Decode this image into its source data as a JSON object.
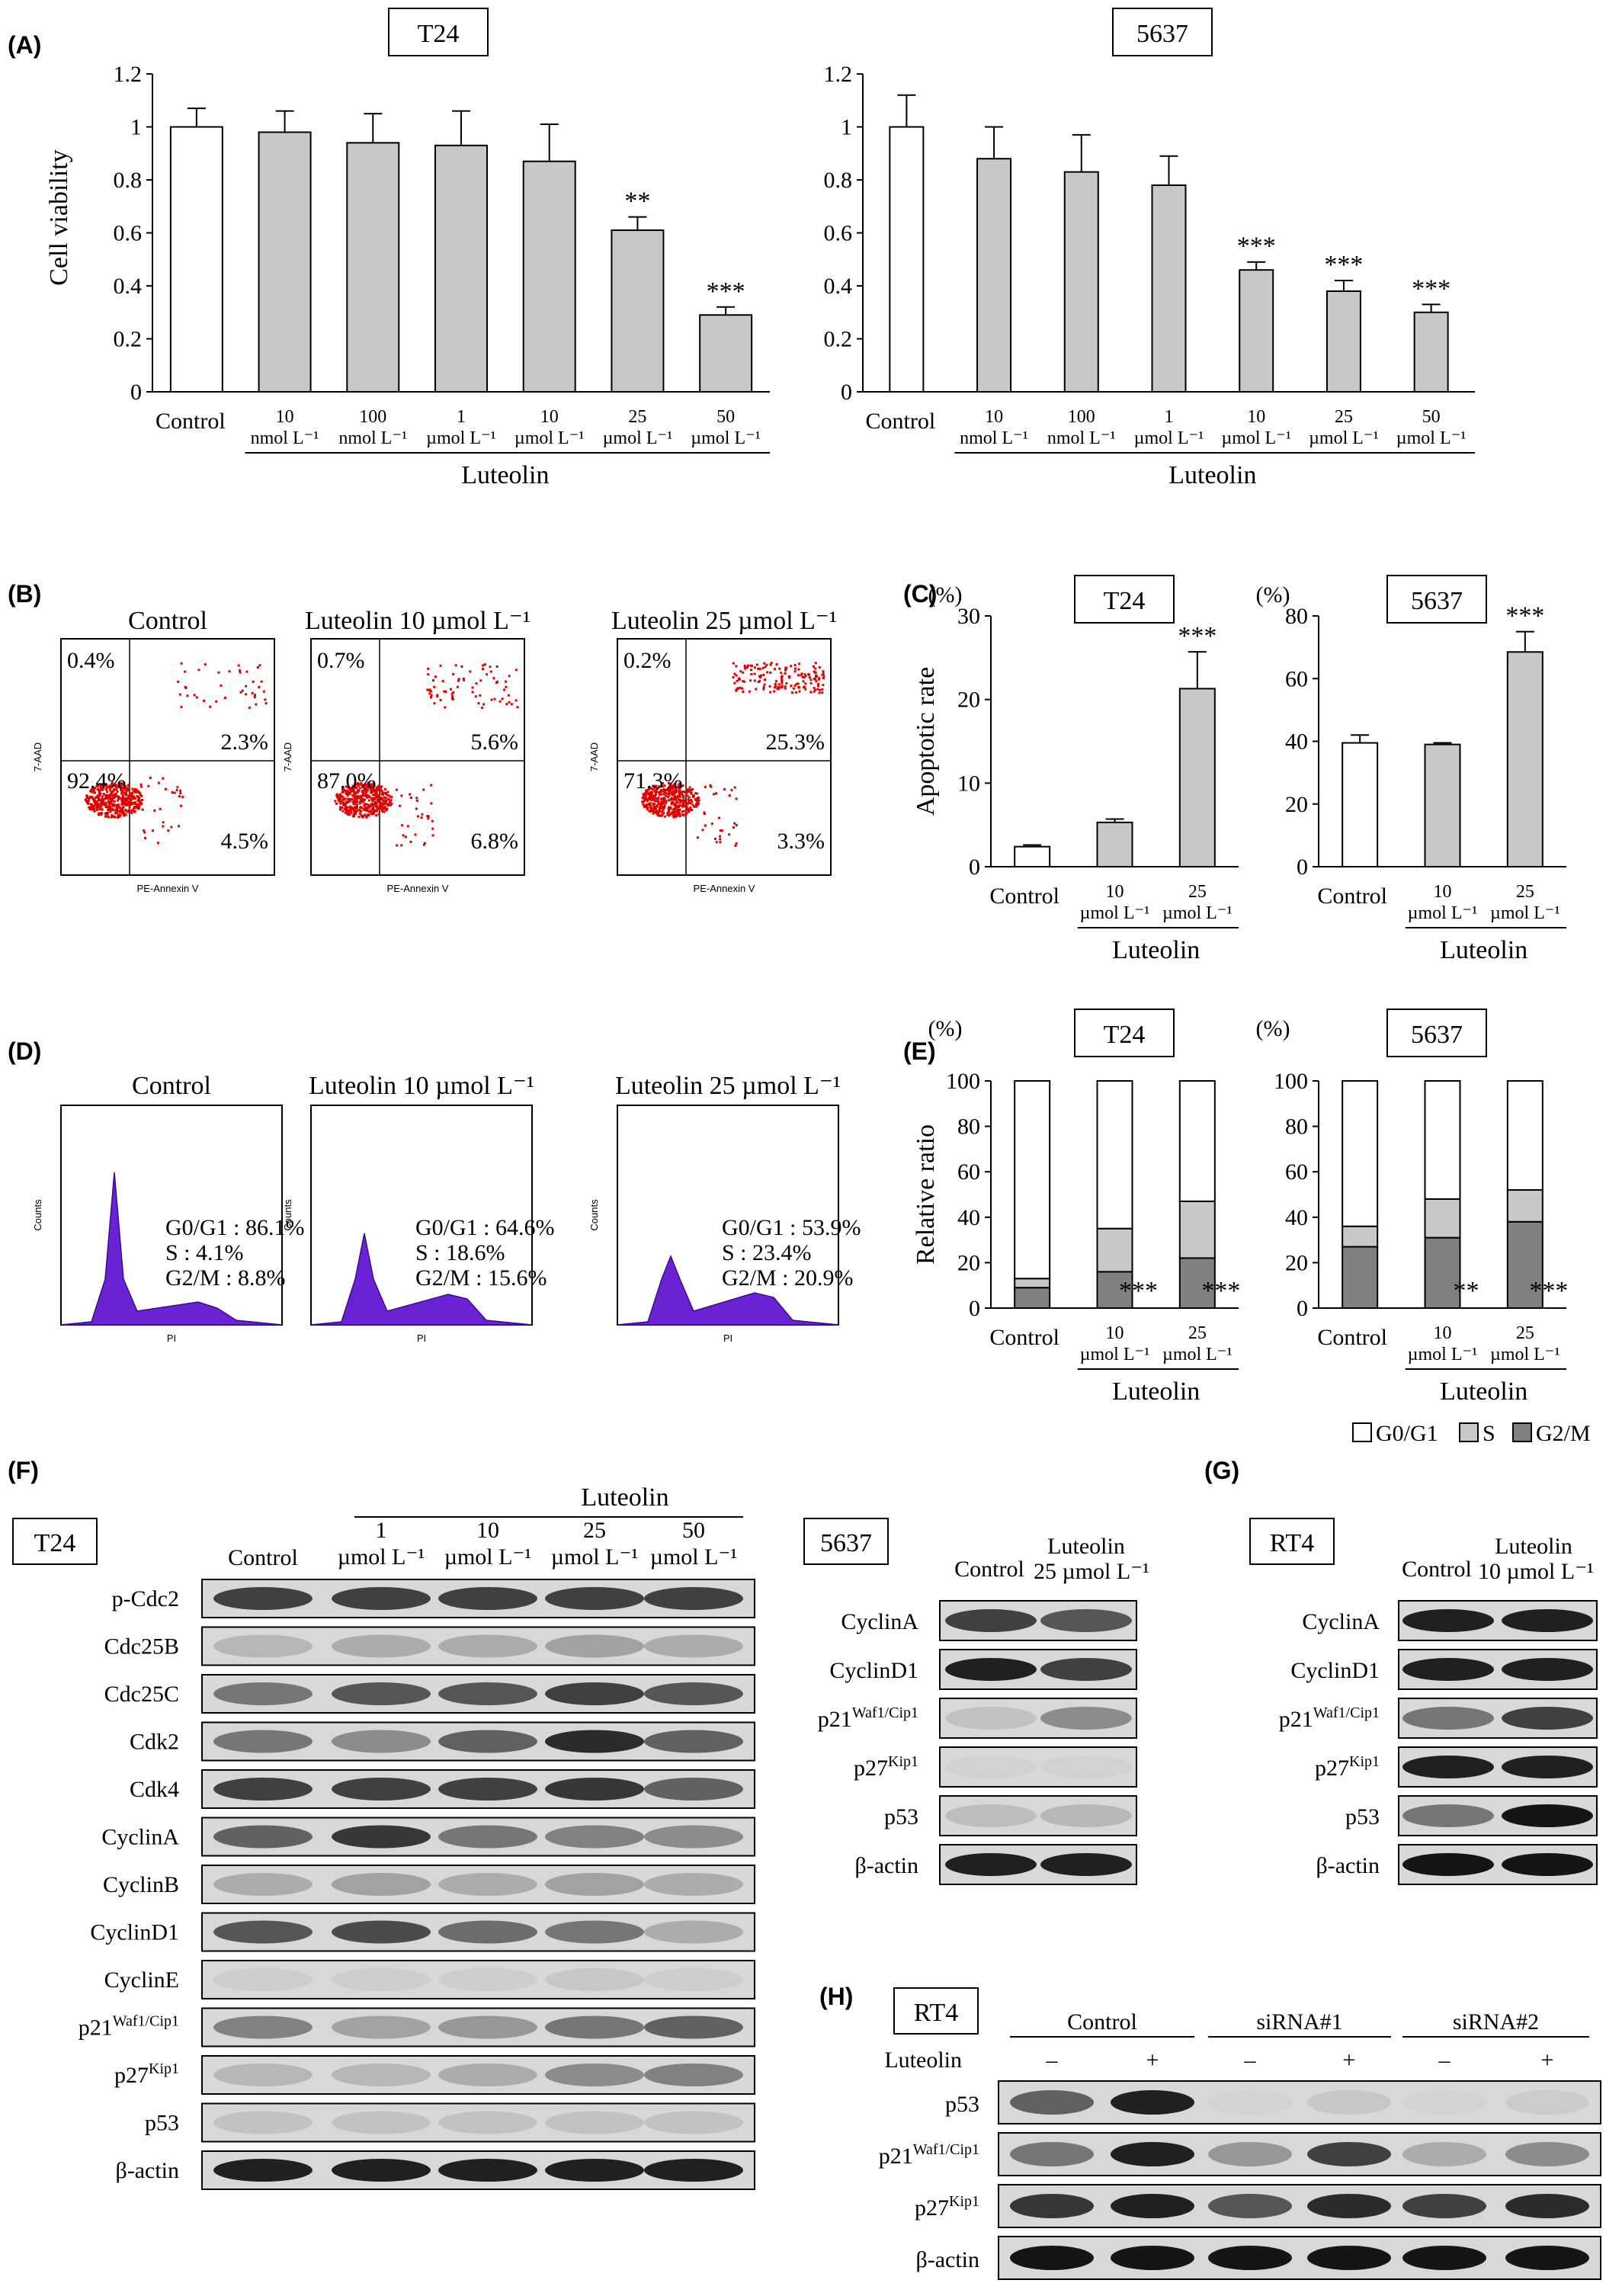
{
  "panels": {
    "A": "(A)",
    "B": "(B)",
    "C": "(C)",
    "D": "(D)",
    "E": "(E)",
    "F": "(F)",
    "G": "(G)",
    "H": "(H)"
  },
  "common": {
    "control": "Control",
    "luteolin": "Luteolin",
    "cell_viability": "Cell viability",
    "apoptotic_rate": "Apoptotic rate",
    "relative_ratio": "Relative ratio",
    "percent_unit": "(%)",
    "dose_labels_A": [
      [
        "10",
        "nmol L⁻¹"
      ],
      [
        "100",
        "nmol L⁻¹"
      ],
      [
        "1",
        "µmol L⁻¹"
      ],
      [
        "10",
        "µmol L⁻¹"
      ],
      [
        "25",
        "µmol L⁻¹"
      ],
      [
        "50",
        "µmol L⁻¹"
      ]
    ],
    "dose_labels_CE": [
      [
        "10",
        "µmol L⁻¹"
      ],
      [
        "25",
        "µmol L⁻¹"
      ]
    ],
    "legend": [
      "G0/G1",
      "S",
      "G2/M"
    ]
  },
  "chart_data": [
    {
      "id": "A-T24",
      "type": "bar",
      "title": "T24",
      "ylabel": "Cell viability",
      "ylim": [
        0,
        1.2
      ],
      "yticks": [
        "0",
        "0.2",
        "0.4",
        "0.6",
        "0.8",
        "1",
        "1.2"
      ],
      "categories": [
        "Control",
        "10 nmol L⁻¹",
        "100 nmol L⁻¹",
        "1 µmol L⁻¹",
        "10 µmol L⁻¹",
        "25 µmol L⁻¹",
        "50 µmol L⁻¹"
      ],
      "values": [
        1.0,
        0.98,
        0.94,
        0.93,
        0.87,
        0.61,
        0.29
      ],
      "errors": [
        0.07,
        0.08,
        0.11,
        0.13,
        0.14,
        0.05,
        0.03
      ],
      "annotations": [
        "",
        "",
        "",
        "",
        "",
        "**",
        "***"
      ]
    },
    {
      "id": "A-5637",
      "type": "bar",
      "title": "5637",
      "ylabel": "",
      "ylim": [
        0,
        1.2
      ],
      "yticks": [
        "0",
        "0.2",
        "0.4",
        "0.6",
        "0.8",
        "1",
        "1.2"
      ],
      "categories": [
        "Control",
        "10 nmol L⁻¹",
        "100 nmol L⁻¹",
        "1 µmol L⁻¹",
        "10 µmol L⁻¹",
        "25 µmol L⁻¹",
        "50 µmol L⁻¹"
      ],
      "values": [
        1.0,
        0.88,
        0.83,
        0.78,
        0.46,
        0.38,
        0.3
      ],
      "errors": [
        0.12,
        0.12,
        0.14,
        0.11,
        0.03,
        0.04,
        0.03
      ],
      "annotations": [
        "",
        "",
        "",
        "",
        "***",
        "***",
        "***"
      ]
    },
    {
      "id": "C-T24",
      "type": "bar",
      "title": "T24",
      "ylabel": "Apoptotic rate",
      "unit": "(%)",
      "ylim": [
        0,
        30
      ],
      "yticks": [
        "0",
        "10",
        "20",
        "30"
      ],
      "categories": [
        "Control",
        "10 µmol L⁻¹",
        "25 µmol L⁻¹"
      ],
      "values": [
        2.4,
        5.3,
        21.3
      ],
      "errors": [
        0.2,
        0.4,
        4.4
      ],
      "annotations": [
        "",
        "",
        "***"
      ]
    },
    {
      "id": "C-5637",
      "type": "bar",
      "title": "5637",
      "ylabel": "",
      "unit": "(%)",
      "ylim": [
        0,
        80
      ],
      "yticks": [
        "0",
        "20",
        "40",
        "60",
        "80"
      ],
      "categories": [
        "Control",
        "10 µmol L⁻¹",
        "25 µmol L⁻¹"
      ],
      "values": [
        39.5,
        39.0,
        68.5
      ],
      "errors": [
        2.5,
        0.5,
        6.5
      ],
      "annotations": [
        "",
        "",
        "***"
      ]
    },
    {
      "id": "E-T24",
      "type": "bar",
      "stacked": true,
      "title": "T24",
      "ylabel": "Relative ratio",
      "unit": "(%)",
      "ylim": [
        0,
        100
      ],
      "yticks": [
        "0",
        "20",
        "40",
        "60",
        "80",
        "100"
      ],
      "categories": [
        "Control",
        "10 µmol L⁻¹",
        "25 µmol L⁻¹"
      ],
      "series": [
        {
          "name": "G2/M",
          "values": [
            9,
            16,
            22
          ]
        },
        {
          "name": "S",
          "values": [
            4,
            19,
            25
          ]
        },
        {
          "name": "G0/G1",
          "values": [
            87,
            65,
            53
          ]
        }
      ],
      "annotations": [
        "",
        "***",
        "***"
      ]
    },
    {
      "id": "E-5637",
      "type": "bar",
      "stacked": true,
      "title": "5637",
      "ylabel": "",
      "unit": "(%)",
      "ylim": [
        0,
        100
      ],
      "yticks": [
        "0",
        "20",
        "40",
        "60",
        "80",
        "100"
      ],
      "categories": [
        "Control",
        "10 µmol L⁻¹",
        "25 µmol L⁻¹"
      ],
      "series": [
        {
          "name": "G2/M",
          "values": [
            27,
            31,
            38
          ]
        },
        {
          "name": "S",
          "values": [
            9,
            17,
            14
          ]
        },
        {
          "name": "G0/G1",
          "values": [
            64,
            52,
            48
          ]
        }
      ],
      "annotations": [
        "",
        "**",
        "***"
      ]
    }
  ],
  "flow_B": {
    "xlabel": "PE-Annexin V",
    "ylabel": "7-AAD",
    "plots": [
      {
        "title": "Control",
        "ul": "0.4%",
        "ur": "2.3%",
        "ll": "92.4%",
        "lr": "4.5%"
      },
      {
        "title": "Luteolin 10 µmol L⁻¹",
        "ul": "0.7%",
        "ur": "5.6%",
        "ll": "87.0%",
        "lr": "6.8%"
      },
      {
        "title": "Luteolin 25 µmol L⁻¹",
        "ul": "0.2%",
        "ur": "25.3%",
        "ll": "71.3%",
        "lr": "3.3%"
      }
    ]
  },
  "cycle_D": {
    "xlabel": "PI",
    "ylabel": "Counts",
    "plots": [
      {
        "title": "Control",
        "g0": "G0/G1 : 86.1%",
        "s": "S : 4.1%",
        "g2": "G2/M : 8.8%"
      },
      {
        "title": "Luteolin 10 µmol L⁻¹",
        "g0": "G0/G1 : 64.6%",
        "s": "S : 18.6%",
        "g2": "G2/M : 15.6%"
      },
      {
        "title": "Luteolin 25 µmol L⁻¹",
        "g0": "G0/G1 : 53.9%",
        "s": "S : 23.4%",
        "g2": "G2/M : 20.9%"
      }
    ]
  },
  "blot_F": {
    "cell": "T24",
    "header": "Luteolin",
    "lanes": [
      [
        "Control",
        ""
      ],
      [
        "1",
        "µmol L⁻¹"
      ],
      [
        "10",
        "µmol L⁻¹"
      ],
      [
        "25",
        "µmol L⁻¹"
      ],
      [
        "50",
        "µmol L⁻¹"
      ]
    ],
    "rows": [
      "p-Cdc2",
      "Cdc25B",
      "Cdc25C",
      "Cdk2",
      "Cdk4",
      "CyclinA",
      "CyclinB",
      "CyclinD1",
      "CyclinE",
      "p21",
      "p27",
      "p53",
      "β-actin"
    ]
  },
  "blot_F2": {
    "cell": "5637",
    "lanes": [
      [
        "Control",
        ""
      ],
      [
        "Luteolin",
        "25 µmol L⁻¹"
      ]
    ],
    "rows": [
      "CyclinA",
      "CyclinD1",
      "p21",
      "p27",
      "p53",
      "β-actin"
    ]
  },
  "blot_G": {
    "cell": "RT4",
    "lanes": [
      [
        "Control",
        ""
      ],
      [
        "Luteolin",
        "10 µmol L⁻¹"
      ]
    ],
    "rows": [
      "CyclinA",
      "CyclinD1",
      "p21",
      "p27",
      "p53",
      "β-actin"
    ]
  },
  "blot_H": {
    "cell": "RT4",
    "groups": [
      "Control",
      "siRNA#1",
      "siRNA#2"
    ],
    "treat_label": "Luteolin",
    "treat": [
      "–",
      "+",
      "–",
      "+",
      "–",
      "+"
    ],
    "rows": [
      "p53",
      "p21",
      "p27",
      "β-actin"
    ]
  },
  "super": {
    "waf": "Waf1/Cip1",
    "kip": "Kip1"
  }
}
